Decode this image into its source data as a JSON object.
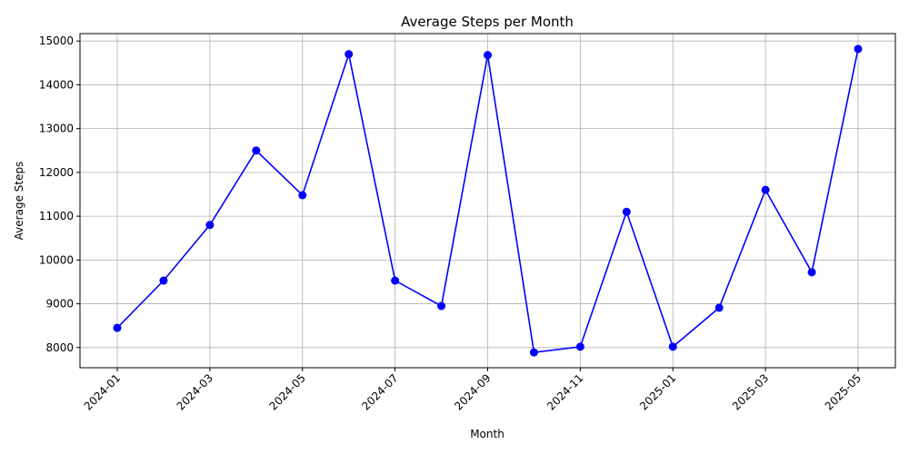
{
  "chart_data": {
    "type": "line",
    "title": "Average Steps per Month",
    "xlabel": "Month",
    "ylabel": "Average Steps",
    "x": [
      "2024-01",
      "2024-02",
      "2024-03",
      "2024-04",
      "2024-05",
      "2024-06",
      "2024-07",
      "2024-08",
      "2024-09",
      "2024-10",
      "2024-11",
      "2024-12",
      "2025-01",
      "2025-02",
      "2025-03",
      "2025-04",
      "2025-05"
    ],
    "series": [
      {
        "values": [
          8450,
          9530,
          10800,
          12500,
          11480,
          14700,
          9530,
          8950,
          14680,
          7890,
          8020,
          11100,
          8020,
          8910,
          11600,
          9720,
          14820
        ],
        "color": "#0000ff"
      }
    ],
    "xticks": [
      "2024-01",
      "2024-03",
      "2024-05",
      "2024-07",
      "2024-09",
      "2024-11",
      "2025-01",
      "2025-03",
      "2025-05"
    ],
    "yticks": [
      8000,
      9000,
      10000,
      11000,
      12000,
      13000,
      14000,
      15000
    ],
    "ylim": [
      7540,
      15170
    ],
    "grid": true,
    "marker": "circle"
  }
}
